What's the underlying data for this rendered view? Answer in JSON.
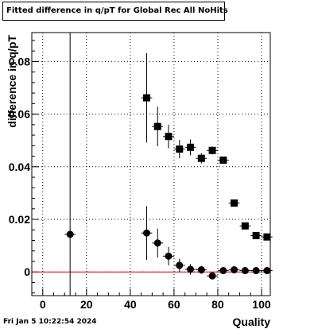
{
  "chart_data": {
    "type": "scatter",
    "title": "Fitted difference in q/pT for Global Rec All NoHits",
    "xlabel": "Quality",
    "ylabel": "difference in q/pT",
    "xlim": [
      -5,
      104
    ],
    "ylim": [
      -0.009,
      0.091
    ],
    "x_ticks": [
      0,
      20,
      40,
      60,
      80,
      100
    ],
    "y_ticks": [
      0,
      0.02,
      0.04,
      0.06,
      0.08
    ],
    "y_tick_labels": [
      "0",
      "0.02",
      "0.04",
      "0.06",
      "0.08"
    ],
    "grid": true,
    "reference_line": {
      "y": 0,
      "color": "#ff0000"
    },
    "series": [
      {
        "marker": "square",
        "color": "#000000",
        "points": [
          {
            "x": 47.5,
            "y": 0.0662,
            "yerr": 0.017
          },
          {
            "x": 52.5,
            "y": 0.0553,
            "yerr": 0.0075
          },
          {
            "x": 57.5,
            "y": 0.0515,
            "yerr": 0.0045
          },
          {
            "x": 62.5,
            "y": 0.0467,
            "yerr": 0.0035
          },
          {
            "x": 67.5,
            "y": 0.0474,
            "yerr": 0.003
          },
          {
            "x": 72.5,
            "y": 0.0432,
            "yerr": 0.002
          },
          {
            "x": 77.5,
            "y": 0.0462,
            "yerr": 0.0015
          },
          {
            "x": 82.5,
            "y": 0.0425,
            "yerr": 0.0012
          },
          {
            "x": 87.5,
            "y": 0.0262,
            "yerr": 0.001
          },
          {
            "x": 92.5,
            "y": 0.0175,
            "yerr": 0.0008
          },
          {
            "x": 97.5,
            "y": 0.0138,
            "yerr": 0.0006
          },
          {
            "x": 102.5,
            "y": 0.0133,
            "yerr": 0.0005
          }
        ]
      },
      {
        "marker": "circle",
        "color": "#000000",
        "points": [
          {
            "x": 12.5,
            "y": 0.0143,
            "yerr": 0.1
          },
          {
            "x": 47.5,
            "y": 0.0148,
            "yerr": 0.0102
          },
          {
            "x": 52.5,
            "y": 0.011,
            "yerr": 0.0055
          },
          {
            "x": 57.5,
            "y": 0.006,
            "yerr": 0.0035
          },
          {
            "x": 62.5,
            "y": 0.0025,
            "yerr": 0.0025
          },
          {
            "x": 67.5,
            "y": 0.001,
            "yerr": 0.002
          },
          {
            "x": 72.5,
            "y": 0.0008,
            "yerr": 0.0015
          },
          {
            "x": 77.5,
            "y": -0.0015,
            "yerr": 0.001
          },
          {
            "x": 82.5,
            "y": 0.0005,
            "yerr": 0.0008
          },
          {
            "x": 87.5,
            "y": 0.0008,
            "yerr": 0.0006
          },
          {
            "x": 92.5,
            "y": 0.0005,
            "yerr": 0.0005
          },
          {
            "x": 97.5,
            "y": 0.0005,
            "yerr": 0.0004
          },
          {
            "x": 102.5,
            "y": 0.0005,
            "yerr": 0.0004
          }
        ]
      }
    ]
  },
  "footer": {
    "timestamp": "Fri Jan  5 10:22:54 2024"
  }
}
